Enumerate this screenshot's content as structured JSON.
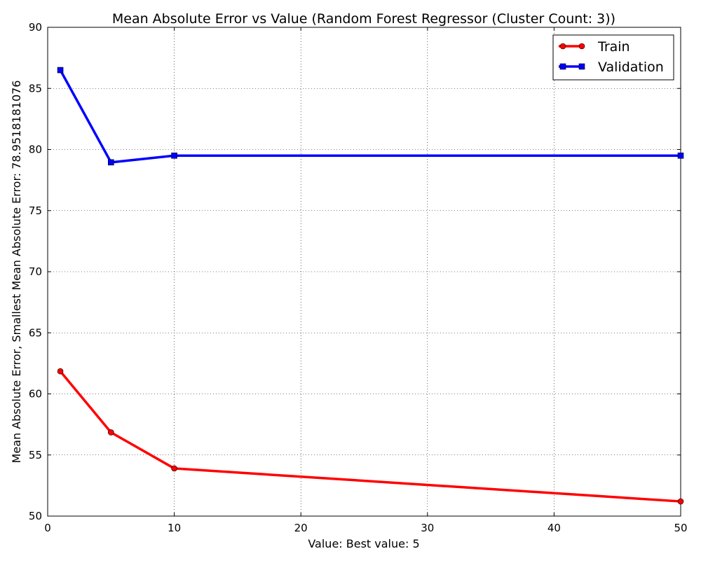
{
  "chart_data": {
    "type": "line",
    "title": "Mean Absolute Error vs Value (Random Forest Regressor (Cluster Count: 3))",
    "xlabel": "Value: Best value: 5",
    "ylabel": "Mean Absolute Error, Smallest Mean Absolute Error: 78.9518181076",
    "xlim": [
      0,
      50
    ],
    "ylim": [
      50,
      90
    ],
    "xticks": [
      "0",
      "10",
      "20",
      "30",
      "40",
      "50"
    ],
    "yticks": [
      "50",
      "55",
      "60",
      "65",
      "70",
      "75",
      "80",
      "85",
      "90"
    ],
    "grid": true,
    "legend_position": "top-right",
    "x": [
      1,
      5,
      10,
      50
    ],
    "series": [
      {
        "name": "Train",
        "color": "#ff0000",
        "marker": "circle",
        "values": [
          61.85,
          56.85,
          53.9,
          51.2
        ]
      },
      {
        "name": "Validation",
        "color": "#0000ff",
        "marker": "square",
        "values": [
          86.5,
          78.95,
          79.5,
          79.5
        ]
      }
    ]
  }
}
